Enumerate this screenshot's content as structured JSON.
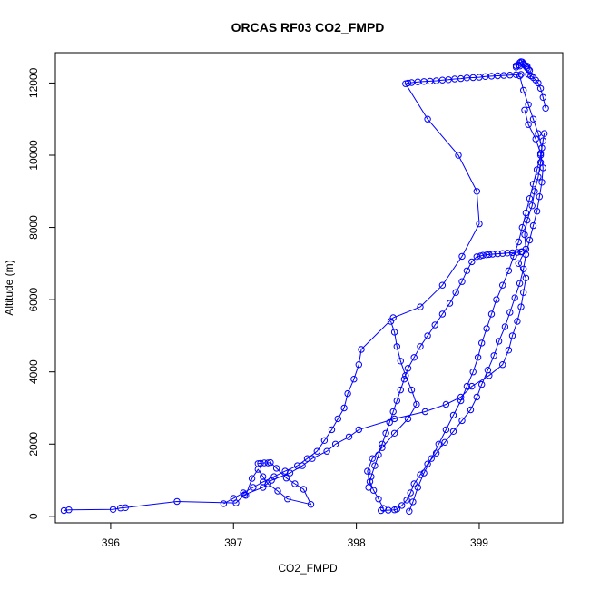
{
  "chart_data": {
    "type": "scatter",
    "title": "ORCAS RF03 CO2_FMPD",
    "xlabel": "CO2_FMPD",
    "ylabel": "Altitude (m)",
    "xlim": [
      395.55,
      399.68
    ],
    "ylim": [
      -180,
      12840
    ],
    "xticks": [
      "396",
      "397",
      "398",
      "399"
    ],
    "yticks": [
      "0",
      "2000",
      "4000",
      "6000",
      "8000",
      "10000",
      "12000"
    ],
    "grid": false,
    "legend": "none",
    "series": [
      {
        "style": "line+open-circles",
        "color": "#0000ff",
        "x": [
          395.62,
          395.66,
          396.02,
          396.08,
          396.12,
          396.54,
          397.02,
          397.09,
          397.24,
          397.31,
          397.46,
          397.56,
          397.64,
          397.76,
          397.83,
          397.94,
          398.02,
          398.31,
          398.56,
          398.73,
          398.85,
          398.94,
          399.08,
          399.19,
          399.24,
          399.27,
          399.31,
          399.34,
          399.36,
          399.38,
          399.32,
          399.38,
          399.37,
          399.39,
          399.43,
          399.45,
          399.48,
          399.5,
          399.51,
          399.48,
          399.44,
          399.4,
          399.36,
          399.33
        ],
        "y": [
          160,
          180,
          190,
          230,
          240,
          410,
          370,
          600,
          800,
          1000,
          1200,
          1400,
          1600,
          1800,
          2000,
          2200,
          2400,
          2700,
          2900,
          3100,
          3300,
          3600,
          3900,
          4200,
          4600,
          5000,
          5400,
          5800,
          6200,
          6600,
          7000,
          7400,
          7800,
          8200,
          8600,
          9000,
          9400,
          9800,
          10200,
          10600,
          11000,
          11400,
          11800,
          12200
        ]
      },
      {
        "style": "line+open-circles",
        "color": "#0000ff",
        "x": [
          399.34,
          399.3,
          399.25,
          399.2,
          399.15,
          399.1,
          399.05,
          399.0,
          398.95,
          398.9,
          398.85,
          398.8,
          398.75,
          398.7,
          398.65,
          398.6,
          398.55,
          398.5,
          398.45,
          398.42,
          398.4,
          398.58,
          398.83,
          398.98,
          399.0,
          398.86,
          398.7,
          398.52,
          398.3,
          398.04,
          398.02,
          397.98,
          397.93,
          397.9,
          397.85,
          397.8,
          397.74,
          397.68,
          397.6,
          397.52,
          397.42,
          397.33,
          397.24,
          397.16,
          397.08,
          397.0,
          396.92
        ],
        "y": [
          12240,
          12230,
          12220,
          12210,
          12200,
          12190,
          12180,
          12160,
          12150,
          12140,
          12120,
          12110,
          12090,
          12080,
          12060,
          12050,
          12040,
          12030,
          12010,
          12000,
          11980,
          11000,
          10000,
          9000,
          8100,
          7200,
          6400,
          5800,
          5500,
          4620,
          4200,
          3800,
          3400,
          3000,
          2700,
          2400,
          2100,
          1800,
          1600,
          1400,
          1250,
          1100,
          950,
          800,
          650,
          500,
          350
        ]
      },
      {
        "style": "line+open-circles",
        "color": "#0000ff",
        "x": [
          399.35,
          399.34,
          399.31,
          399.27,
          399.23,
          399.19,
          399.15,
          399.11,
          399.08,
          399.06,
          399.03,
          399.01,
          398.98,
          398.94,
          398.9,
          398.86,
          398.81,
          398.76,
          398.7,
          398.64,
          398.58,
          398.52,
          398.47,
          398.42,
          398.39,
          398.36,
          398.33,
          398.3,
          398.27,
          398.24,
          398.21,
          398.18,
          398.15,
          398.12,
          398.1
        ],
        "y": [
          7330,
          7320,
          7310,
          7300,
          7290,
          7280,
          7270,
          7260,
          7250,
          7240,
          7230,
          7210,
          7190,
          7050,
          6800,
          6500,
          6200,
          5900,
          5600,
          5300,
          5000,
          4700,
          4400,
          4100,
          3800,
          3500,
          3200,
          2900,
          2600,
          2300,
          2000,
          1700,
          1400,
          1100,
          800
        ]
      },
      {
        "style": "line+open-circles",
        "color": "#0000ff",
        "x": [
          398.2,
          398.26,
          398.31,
          398.33,
          398.37,
          398.41,
          398.44,
          398.47,
          398.52,
          398.58,
          398.65,
          398.72,
          398.79,
          398.86,
          398.93,
          398.98,
          399.02,
          399.07,
          399.12,
          399.16,
          399.21,
          399.25,
          399.29,
          399.33,
          399.36,
          399.38,
          399.41,
          399.44,
          399.47,
          399.49,
          399.51,
          399.52,
          399.5,
          399.46,
          399.4,
          399.37
        ],
        "y": [
          160,
          170,
          180,
          200,
          300,
          450,
          650,
          900,
          1150,
          1450,
          1750,
          2050,
          2350,
          2650,
          2950,
          3300,
          3650,
          4050,
          4450,
          4850,
          5250,
          5650,
          6050,
          6450,
          6850,
          7250,
          7650,
          8050,
          8450,
          8850,
          9250,
          9650,
          10050,
          10450,
          10850,
          11250
        ]
      },
      {
        "style": "line+open-circles",
        "color": "#0000ff",
        "x": [
          398.43,
          398.46,
          398.5,
          398.55,
          398.61,
          398.67,
          398.73,
          398.79,
          398.85,
          398.9,
          398.95,
          398.99,
          399.02,
          399.06,
          399.1,
          399.14,
          399.19,
          399.24,
          399.28,
          399.32,
          399.35,
          399.38,
          399.41,
          399.44,
          399.47,
          399.5,
          399.52,
          399.53
        ],
        "y": [
          140,
          400,
          800,
          1200,
          1600,
          2000,
          2400,
          2800,
          3200,
          3600,
          4000,
          4400,
          4800,
          5200,
          5600,
          6000,
          6400,
          6800,
          7200,
          7600,
          8000,
          8400,
          8800,
          9200,
          9600,
          10000,
          10400,
          10600
        ]
      },
      {
        "style": "line+open-circles",
        "color": "#0000ff",
        "x": [
          399.4,
          399.42,
          399.44,
          399.46,
          399.48,
          399.5,
          399.52,
          399.54
        ],
        "y": [
          12240,
          12200,
          12150,
          12080,
          12000,
          11850,
          11600,
          11300
        ]
      },
      {
        "style": "open-circles",
        "color": "#0000ff",
        "x": [
          399.3,
          399.32,
          399.33,
          399.34,
          399.35,
          399.36,
          399.37,
          399.38,
          399.39,
          399.4,
          399.41,
          399.3,
          399.33,
          399.36,
          399.39
        ],
        "y": [
          12480,
          12500,
          12560,
          12590,
          12580,
          12540,
          12500,
          12460,
          12420,
          12380,
          12350,
          12440,
          12470,
          12520,
          12470
        ]
      },
      {
        "style": "line+open-circles",
        "color": "#0000ff",
        "x": [
          397.2,
          397.22,
          397.25,
          397.28,
          397.3,
          397.35,
          397.43,
          397.5,
          397.57,
          397.63,
          397.44,
          397.36,
          397.28,
          397.24,
          397.2,
          397.15,
          397.1
        ],
        "y": [
          1460,
          1470,
          1480,
          1480,
          1490,
          1330,
          1060,
          900,
          750,
          330,
          480,
          700,
          900,
          1100,
          1300,
          1050,
          580
        ]
      },
      {
        "style": "line+open-circles",
        "color": "#0000ff",
        "x": [
          398.22,
          398.18,
          398.14,
          398.11,
          398.09,
          398.13,
          398.21,
          398.31,
          398.42,
          398.49,
          398.45,
          398.4,
          398.36,
          398.33,
          398.31,
          398.28
        ],
        "y": [
          220,
          480,
          720,
          960,
          1250,
          1600,
          1900,
          2300,
          2700,
          3100,
          3500,
          3900,
          4300,
          4700,
          5100,
          5400
        ]
      }
    ]
  }
}
